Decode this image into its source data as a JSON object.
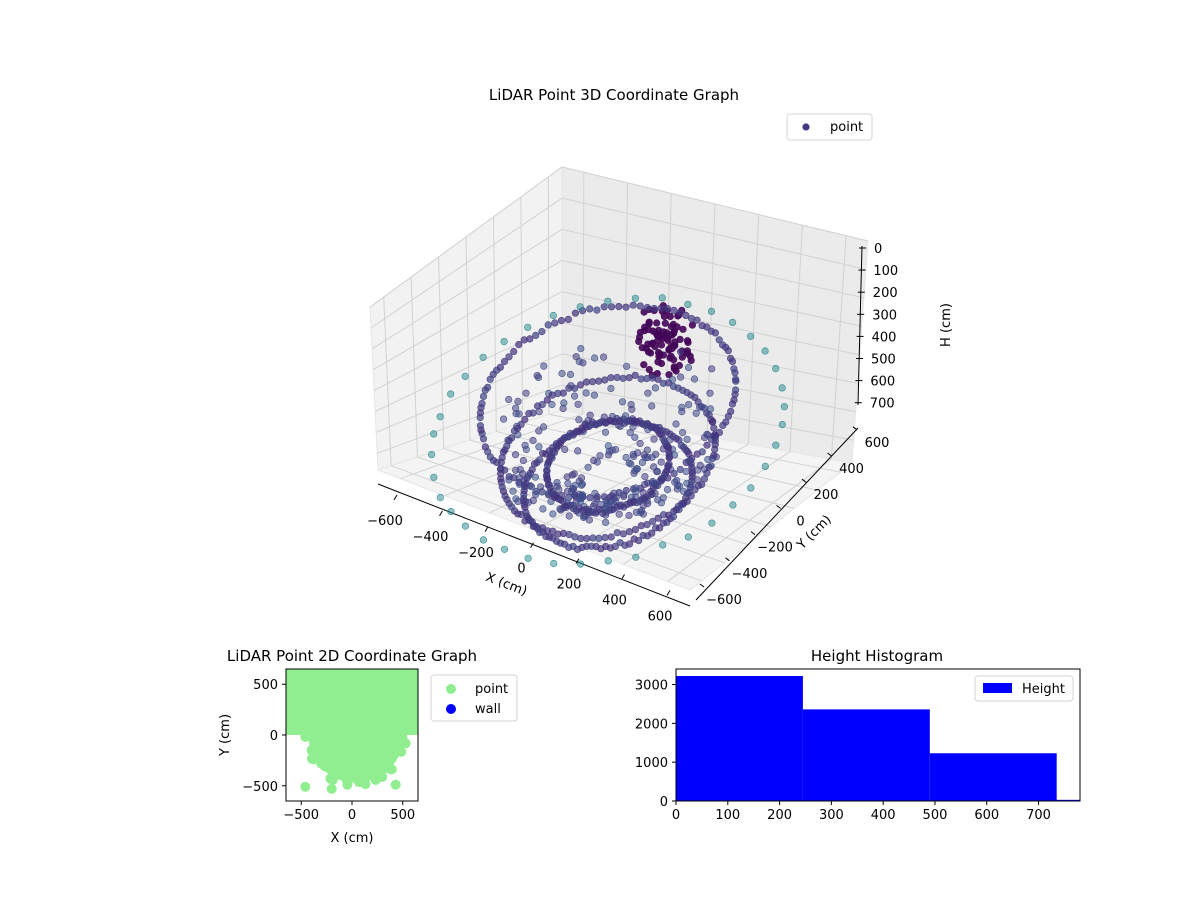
{
  "chart_data": [
    {
      "type": "scatter",
      "title": "LiDAR Point 3D Coordinate Graph",
      "xlabel": "X (cm)",
      "ylabel": "Y (cm)",
      "zlabel": "H (cm)",
      "xlim": [
        -700,
        700
      ],
      "ylim": [
        -700,
        700
      ],
      "zlim": [
        0,
        780
      ],
      "z_inverted": true,
      "x_ticks": [
        "−600",
        "−400",
        "−200",
        "0",
        "200",
        "400",
        "600"
      ],
      "y_ticks": [
        "−600",
        "−400",
        "−200",
        "0",
        "200",
        "400",
        "600"
      ],
      "z_ticks": [
        "0",
        "100",
        "200",
        "300",
        "400",
        "500",
        "600",
        "700"
      ],
      "legend": {
        "position": "top-right",
        "entries": [
          "point"
        ]
      },
      "grid": true,
      "colormap": "viridis",
      "colors": {
        "point": "#443983"
      },
      "structures": [
        {
          "kind": "ring",
          "radius": 500,
          "h": 260
        },
        {
          "kind": "ring",
          "radius": 420,
          "h": 520
        },
        {
          "kind": "ring",
          "radius": 330,
          "h": 650
        },
        {
          "kind": "ring",
          "radius": 240,
          "h": 560
        },
        {
          "kind": "outer_ring",
          "radius": 690,
          "h": 400
        },
        {
          "kind": "cluster",
          "x": 40,
          "y": 320,
          "h_range": [
            120,
            330
          ]
        }
      ]
    },
    {
      "type": "scatter",
      "title": "LiDAR Point 2D Coordinate Graph",
      "xlabel": "X (cm)",
      "ylabel": "Y (cm)",
      "xlim": [
        -650,
        650
      ],
      "ylim": [
        -650,
        650
      ],
      "x_ticks": [
        -500,
        0,
        500
      ],
      "y_ticks": [
        -500,
        0,
        500
      ],
      "series": [
        {
          "name": "point",
          "color": "#90ee90"
        },
        {
          "name": "wall",
          "color": "#0000ff"
        }
      ],
      "outliers": [
        [
          -460,
          -510
        ],
        [
          -200,
          -530
        ],
        [
          430,
          -490
        ],
        [
          560,
          500
        ]
      ],
      "legend": {
        "position": "outside-right"
      }
    },
    {
      "type": "bar",
      "title": "Height Histogram",
      "xlim": [
        0,
        780
      ],
      "ylim": [
        0,
        3400
      ],
      "x_ticks": [
        0,
        100,
        200,
        300,
        400,
        500,
        600,
        700
      ],
      "y_ticks": [
        0,
        1000,
        2000,
        3000
      ],
      "bins": [
        {
          "from": 0,
          "to": 245,
          "count": 3220
        },
        {
          "from": 245,
          "to": 490,
          "count": 2360
        },
        {
          "from": 490,
          "to": 735,
          "count": 1230
        },
        {
          "from": 735,
          "to": 780,
          "count": 30
        }
      ],
      "series": [
        {
          "name": "Height",
          "color": "#0000ff"
        }
      ],
      "legend": {
        "position": "top-right"
      }
    }
  ]
}
